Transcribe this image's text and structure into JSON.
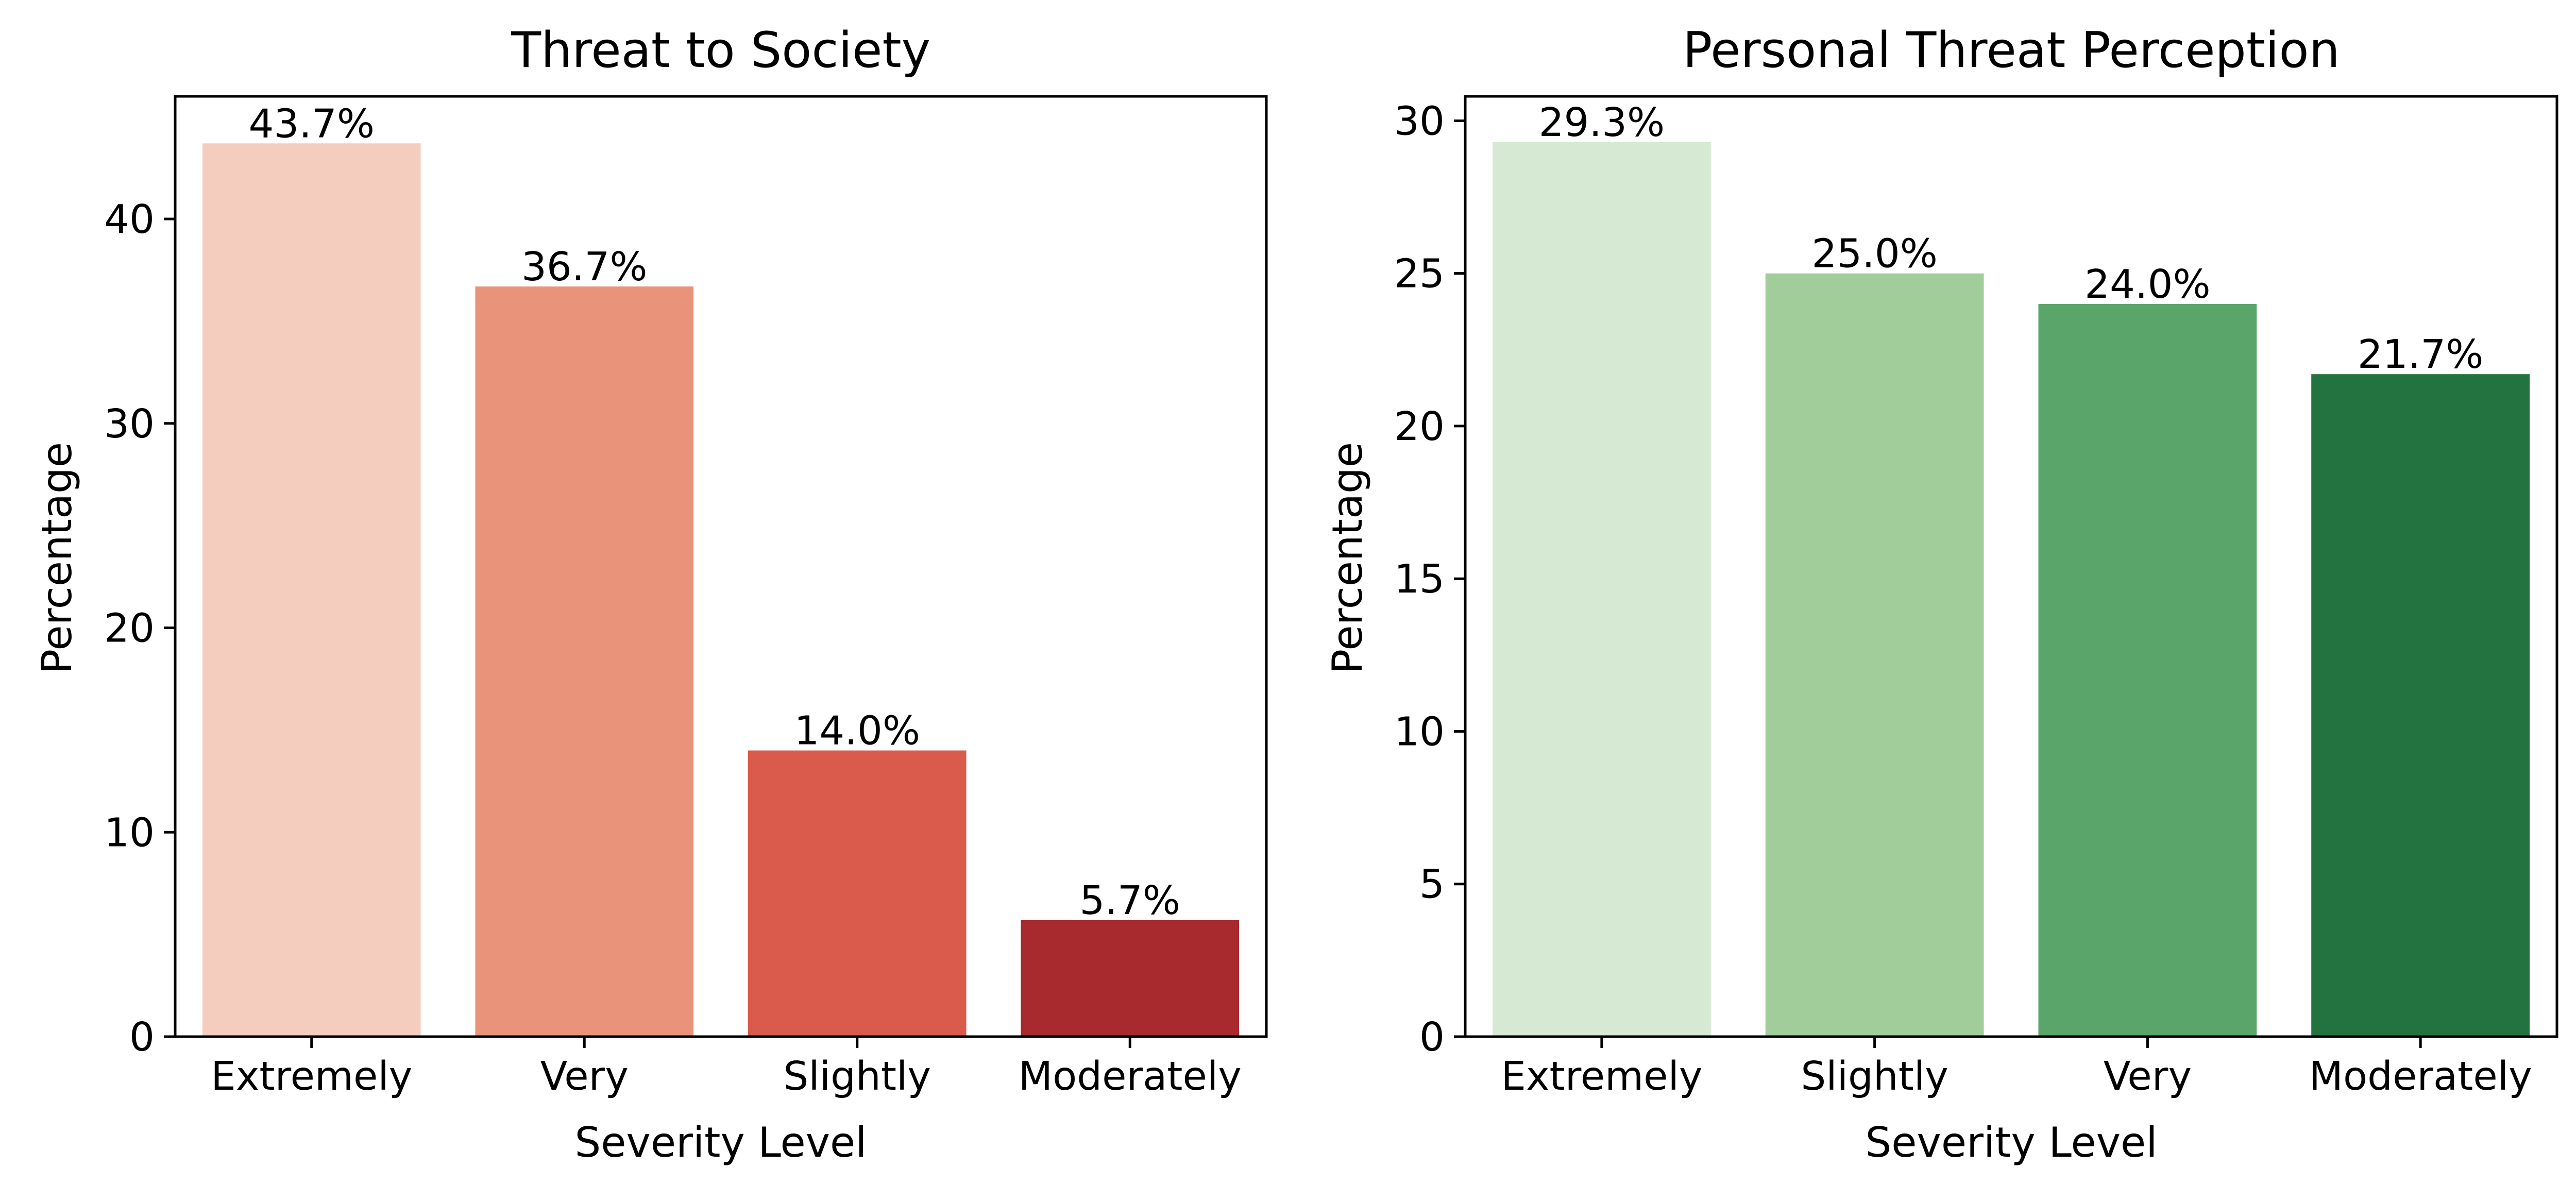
{
  "chart_data": [
    {
      "type": "bar",
      "title": "Threat to Society",
      "xlabel": "Severity Level",
      "ylabel": "Percentage",
      "categories": [
        "Extremely",
        "Very",
        "Slightly",
        "Moderately"
      ],
      "values": [
        43.7,
        36.7,
        14.0,
        5.7
      ],
      "value_labels": [
        "43.7%",
        "36.7%",
        "14.0%",
        "5.7%"
      ],
      "colors": [
        "#f4cdbf",
        "#e9947a",
        "#da5a4b",
        "#a8292e"
      ],
      "ylim": [
        0,
        46.0
      ],
      "yticks": [
        0,
        10,
        20,
        30,
        40
      ],
      "ytick_labels": [
        "0",
        "10",
        "20",
        "30",
        "40"
      ],
      "grid": false,
      "legend": "none"
    },
    {
      "type": "bar",
      "title": "Personal Threat Perception",
      "xlabel": "Severity Level",
      "ylabel": "Percentage",
      "categories": [
        "Extremely",
        "Slightly",
        "Very",
        "Moderately"
      ],
      "values": [
        29.3,
        25.0,
        24.0,
        21.7
      ],
      "value_labels": [
        "29.3%",
        "25.0%",
        "24.0%",
        "21.7%"
      ],
      "colors": [
        "#d6ead3",
        "#a1cd9b",
        "#5aa66a",
        "#22733f"
      ],
      "ylim": [
        0,
        30.8
      ],
      "yticks": [
        0,
        5,
        10,
        15,
        20,
        25,
        30
      ],
      "ytick_labels": [
        "0",
        "5",
        "10",
        "15",
        "20",
        "25",
        "30"
      ],
      "grid": false,
      "legend": "none"
    }
  ]
}
